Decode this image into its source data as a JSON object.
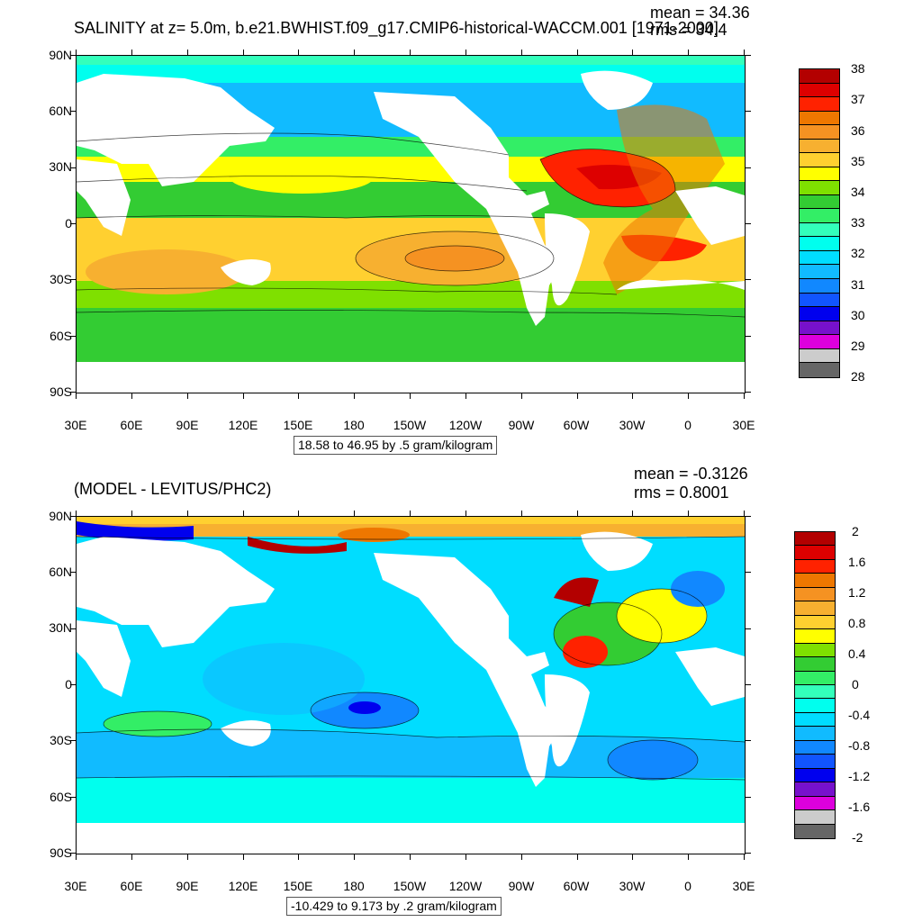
{
  "top": {
    "title": "SALINITY at z=   5.0m, b.e21.BWHIST.f09_g17.CMIP6-historical-WACCM.001 [1971-2000]",
    "mean": "mean = 34.36",
    "rms": "rms = 34.4",
    "range_label": "18.58 to 46.95 by .5 gram/kilogram",
    "y_ticks": [
      "90N",
      "60N",
      "30N",
      "0",
      "30S",
      "60S",
      "90S"
    ],
    "x_ticks": [
      "30E",
      "60E",
      "90E",
      "120E",
      "150E",
      "180",
      "150W",
      "120W",
      "90W",
      "60W",
      "30W",
      "0",
      "30E"
    ],
    "colorbar_labels": [
      "38",
      "37",
      "36",
      "35",
      "34",
      "33",
      "32",
      "31",
      "30",
      "29",
      "28"
    ],
    "colorbar_colors": [
      "#b30000",
      "#dd0000",
      "#ff2200",
      "#ee7700",
      "#f59222",
      "#f7b030",
      "#ffd030",
      "#ffff00",
      "#7fe000",
      "#33cc33",
      "#33ee66",
      "#33ffbb",
      "#00ffee",
      "#00ddff",
      "#11bbff",
      "#1188ff",
      "#1155ff",
      "#0000ee",
      "#7711cc",
      "#dd00dd",
      "#cccccc",
      "#666666"
    ]
  },
  "bottom": {
    "title": "(MODEL - LEVITUS/PHC2)",
    "mean": "mean = -0.3126",
    "rms": "rms = 0.8001",
    "range_label": "-10.429 to 9.173 by .2 gram/kilogram",
    "y_ticks": [
      "90N",
      "60N",
      "30N",
      "0",
      "30S",
      "60S",
      "90S"
    ],
    "x_ticks": [
      "30E",
      "60E",
      "90E",
      "120E",
      "150E",
      "180",
      "150W",
      "120W",
      "90W",
      "60W",
      "30W",
      "0",
      "30E"
    ],
    "colorbar_labels": [
      "2",
      "1.6",
      "1.2",
      "0.8",
      "0.4",
      "0",
      "-0.4",
      "-0.8",
      "-1.2",
      "-1.6",
      "-2"
    ],
    "colorbar_colors": [
      "#b30000",
      "#dd0000",
      "#ff2200",
      "#ee7700",
      "#f59222",
      "#f7b030",
      "#ffd030",
      "#ffff00",
      "#7fe000",
      "#33cc33",
      "#33ee66",
      "#33ffbb",
      "#00ffee",
      "#00ddff",
      "#11bbff",
      "#1188ff",
      "#1155ff",
      "#0000ee",
      "#7711cc",
      "#dd00dd",
      "#cccccc",
      "#666666"
    ]
  }
}
